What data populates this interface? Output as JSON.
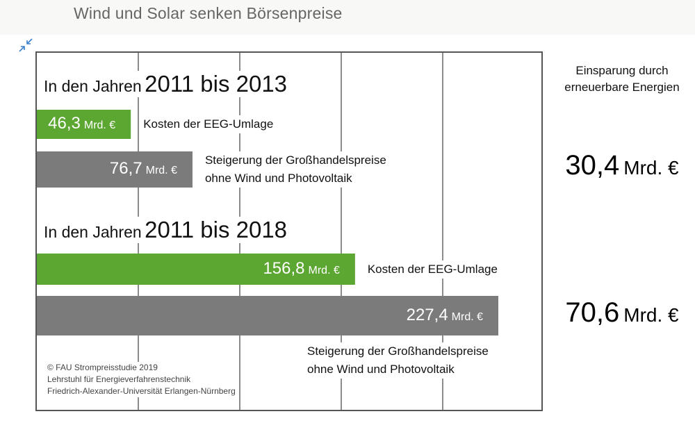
{
  "page": {
    "title": "Wind und Solar senken Börsenpreise",
    "collapse_icon": "collapse-arrows-icon"
  },
  "colors": {
    "green": "#5ca632",
    "gray": "#7b7b7b",
    "grid": "#666666"
  },
  "chart_data": {
    "type": "bar",
    "orientation": "horizontal",
    "unit": "Mrd. €",
    "grid": true,
    "xlim": [
      0,
      230
    ],
    "groups": [
      {
        "heading_prefix": "In den Jahren",
        "heading_range": "2011 bis 2013",
        "bars": [
          {
            "value": 46.3,
            "value_label": "46,3",
            "unit": "Mrd. €",
            "color": "green",
            "label": "Kosten der EEG-Umlage"
          },
          {
            "value": 76.7,
            "value_label": "76,7",
            "unit": "Mrd. €",
            "color": "gray",
            "label": "Steigerung der Großhandelspreise\nohne Wind und Photovoltaik"
          }
        ],
        "savings_value": "30,4",
        "savings_unit": "Mrd. €"
      },
      {
        "heading_prefix": "In den Jahren",
        "heading_range": "2011 bis 2018",
        "bars": [
          {
            "value": 156.8,
            "value_label": "156,8",
            "unit": "Mrd. €",
            "color": "green",
            "label": "Kosten der EEG-Umlage"
          },
          {
            "value": 227.4,
            "value_label": "227,4",
            "unit": "Mrd. €",
            "color": "gray",
            "label": "Steigerung der Großhandelspreise\nohne Wind und Photovoltaik"
          }
        ],
        "savings_value": "70,6",
        "savings_unit": "Mrd. €"
      }
    ],
    "savings_heading": "Einsparung durch\nerneuerbare Energien",
    "credit": [
      "© FAU Strompreisstudie 2019",
      "Lehrstuhl für Energieverfahrenstechnik",
      "Friedrich-Alexander-Universität Erlangen-Nürnberg"
    ]
  }
}
